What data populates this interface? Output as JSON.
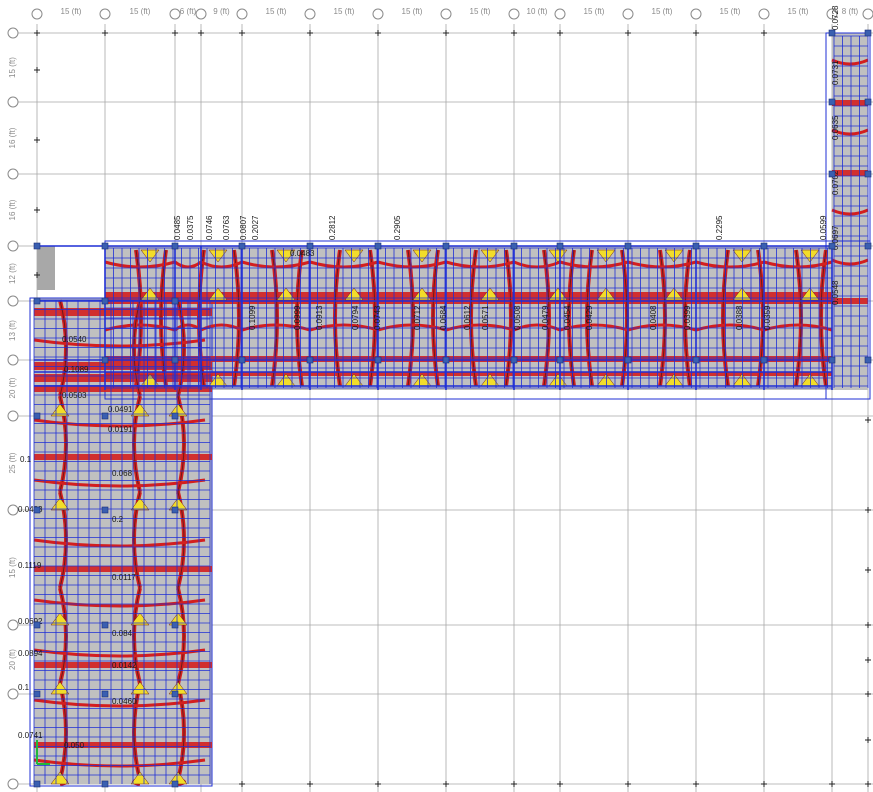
{
  "app": {
    "title": ""
  },
  "grid": {
    "x_spacing_labels": [
      "15 (ft)",
      "15 (ft)",
      "6 (ft)",
      "9 (ft)",
      "15 (ft)",
      "15 (ft)",
      "15 (ft)",
      "15 (ft)",
      "10 (ft)",
      "15 (ft)",
      "15 (ft)",
      "15 (ft)",
      "15 (ft)",
      "8 (ft)"
    ],
    "y_spacing_labels": [
      "15 (ft)",
      "16 (ft)",
      "16 (ft)",
      "12 (ft)",
      "13 (ft)",
      "20 (ft)",
      "25 (ft)",
      "15 (ft)",
      "20 (ft)"
    ]
  },
  "values": {
    "top_strip": [
      "0.0485",
      "0.0375",
      "0.0746",
      "0.0763",
      "0.0807",
      "0.2027",
      "0.0483",
      "0.2812",
      "0.2905",
      "0.2295",
      "0.0599"
    ],
    "right_column": [
      "0.0728",
      "0.0731",
      "0.0635",
      "0.0702",
      "0.0697",
      "0.0548"
    ],
    "left_column": [
      "0.0540",
      "0.1089",
      "0.0503",
      "0.0491",
      "0.0191",
      "0.1",
      "0.068",
      "0.0483",
      "0.2",
      "0.1119",
      "0.0117",
      "0.0692",
      "0.084",
      "0.0894",
      "0.0142",
      "0.1",
      "0.0460",
      "0.0741",
      "0.050"
    ],
    "beam_vertical": [
      "0.1099",
      "0.0999",
      "0.0913",
      "0.0794",
      "0.0743",
      "0.0712",
      "0.0684",
      "0.0612",
      "0.0571",
      "0.0508",
      "0.0479",
      "0.0454",
      "0.0429",
      "0.0408",
      "0.0399",
      "0.0388",
      "0.0359"
    ]
  },
  "colors": {
    "slab_fill": "#c0c0c0",
    "mesh_line": "#1f2fd6",
    "moment_red": "#d31f1f",
    "moment_dark": "#6a1a1a",
    "moment_yellow": "#f2dd2a",
    "grid_line": "#a8a8a8",
    "support": "#3a5fb0"
  },
  "icons": {
    "support": "square-support-icon",
    "axis": "green-axis-marker-icon"
  }
}
